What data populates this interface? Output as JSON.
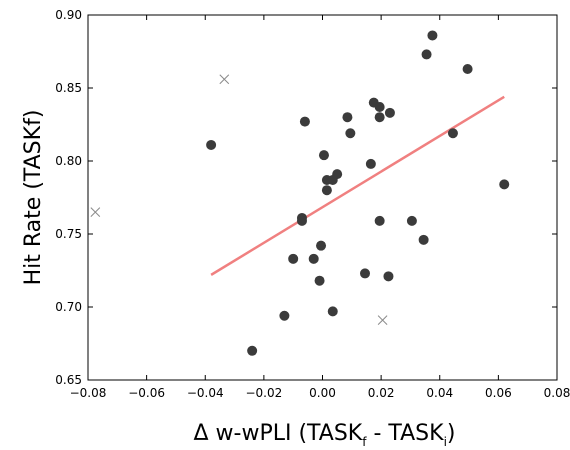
{
  "chart_data": {
    "type": "scatter",
    "title": "",
    "xlabel": "Δ w-wPLI (TASK",
    "xlabel_sub_f": "f",
    "xlabel_mid": " - TASK",
    "xlabel_sub_i": "i",
    "xlabel_end": ")",
    "ylabel": "Hit Rate (TASKf)",
    "xlim": [
      -0.08,
      0.08
    ],
    "ylim": [
      0.65,
      0.9
    ],
    "xticks": [
      -0.08,
      -0.06,
      -0.04,
      -0.02,
      0.0,
      0.02,
      0.04,
      0.06,
      0.08
    ],
    "xtick_labels": [
      "−0.08",
      "−0.06",
      "−0.04",
      "−0.02",
      "0.00",
      "0.02",
      "0.04",
      "0.06",
      "0.08"
    ],
    "yticks": [
      0.65,
      0.7,
      0.75,
      0.8,
      0.85,
      0.9
    ],
    "ytick_labels": [
      "0.65",
      "0.70",
      "0.75",
      "0.80",
      "0.85",
      "0.90"
    ],
    "grid": false,
    "points": [
      {
        "x": -0.038,
        "y": 0.811
      },
      {
        "x": -0.024,
        "y": 0.67
      },
      {
        "x": -0.013,
        "y": 0.694
      },
      {
        "x": -0.01,
        "y": 0.733
      },
      {
        "x": -0.007,
        "y": 0.761
      },
      {
        "x": -0.007,
        "y": 0.759
      },
      {
        "x": -0.006,
        "y": 0.827
      },
      {
        "x": -0.003,
        "y": 0.733
      },
      {
        "x": -0.001,
        "y": 0.718
      },
      {
        "x": -0.0005,
        "y": 0.742
      },
      {
        "x": 0.0005,
        "y": 0.804
      },
      {
        "x": 0.0015,
        "y": 0.787
      },
      {
        "x": 0.0015,
        "y": 0.78
      },
      {
        "x": 0.0035,
        "y": 0.787
      },
      {
        "x": 0.0035,
        "y": 0.697
      },
      {
        "x": 0.005,
        "y": 0.791
      },
      {
        "x": 0.0085,
        "y": 0.83
      },
      {
        "x": 0.0095,
        "y": 0.819
      },
      {
        "x": 0.0145,
        "y": 0.723
      },
      {
        "x": 0.0165,
        "y": 0.798
      },
      {
        "x": 0.0175,
        "y": 0.84
      },
      {
        "x": 0.0195,
        "y": 0.837
      },
      {
        "x": 0.0195,
        "y": 0.83
      },
      {
        "x": 0.0195,
        "y": 0.759
      },
      {
        "x": 0.0225,
        "y": 0.721
      },
      {
        "x": 0.023,
        "y": 0.833
      },
      {
        "x": 0.0305,
        "y": 0.759
      },
      {
        "x": 0.0345,
        "y": 0.746
      },
      {
        "x": 0.0355,
        "y": 0.873
      },
      {
        "x": 0.0375,
        "y": 0.886
      },
      {
        "x": 0.0445,
        "y": 0.819
      },
      {
        "x": 0.0495,
        "y": 0.863
      },
      {
        "x": 0.062,
        "y": 0.784
      }
    ],
    "outliers": [
      {
        "x": -0.0775,
        "y": 0.765
      },
      {
        "x": -0.0335,
        "y": 0.856
      },
      {
        "x": 0.0205,
        "y": 0.691
      }
    ],
    "fit_line": {
      "x": [
        -0.038,
        0.062
      ],
      "y": [
        0.722,
        0.844
      ]
    },
    "colors": {
      "points": "#3b3b3b",
      "outliers": "#8a8a8a",
      "fit_line": "#f08080",
      "axes": "#000000"
    }
  }
}
